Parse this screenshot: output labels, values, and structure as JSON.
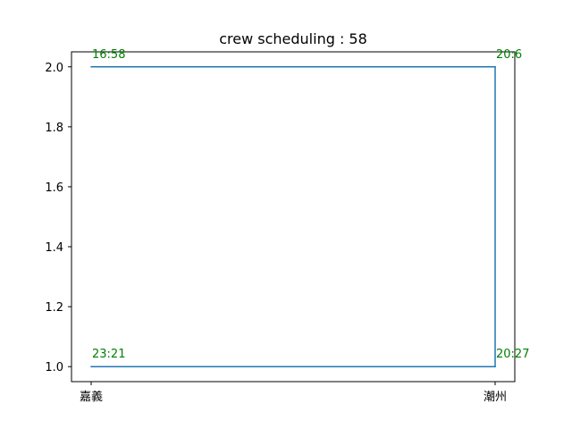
{
  "chart_data": {
    "type": "line",
    "title": "crew scheduling : 58",
    "xlabel": "",
    "ylabel": "",
    "x_categories": [
      "嘉義",
      "潮州"
    ],
    "ylim": [
      0.95,
      2.05
    ],
    "y_ticks": [
      "1.0",
      "1.2",
      "1.4",
      "1.6",
      "1.8",
      "2.0"
    ],
    "grid": false,
    "series": [
      {
        "color": "#1f77b4",
        "points": [
          {
            "x": "嘉義",
            "y": 1.0,
            "label": "23:21"
          },
          {
            "x": "潮州",
            "y": 1.0,
            "label": "20:27"
          },
          {
            "x": "潮州",
            "y": 2.0,
            "label": "20:6"
          },
          {
            "x": "嘉義",
            "y": 2.0,
            "label": "16:58"
          }
        ]
      }
    ],
    "label_color": "#008000"
  }
}
